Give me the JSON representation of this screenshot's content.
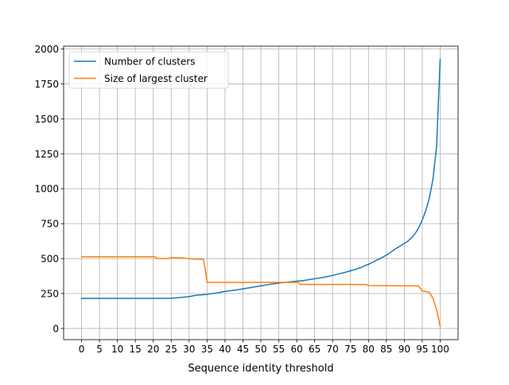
{
  "chart_data": {
    "type": "line",
    "title": "",
    "xlabel": "Sequence identity threshold",
    "ylabel": "",
    "xlim": [
      -5,
      105
    ],
    "ylim": [
      -80,
      2020
    ],
    "xticks": [
      0,
      5,
      10,
      15,
      20,
      25,
      30,
      35,
      40,
      45,
      50,
      55,
      60,
      65,
      70,
      75,
      80,
      85,
      90,
      95,
      100
    ],
    "yticks": [
      0,
      250,
      500,
      750,
      1000,
      1250,
      1500,
      1750,
      2000
    ],
    "grid": true,
    "legend_position": "top-left",
    "series": [
      {
        "name": "Number of clusters",
        "color": "#1f77b4",
        "x": [
          0,
          5,
          10,
          15,
          20,
          24,
          25,
          27,
          30,
          32,
          35,
          38,
          40,
          43,
          46,
          50,
          53,
          56,
          58,
          60,
          62,
          64,
          66,
          68,
          70,
          72,
          74,
          76,
          78,
          79,
          80,
          81,
          82,
          83,
          84,
          85,
          86,
          87,
          88,
          89,
          90,
          91,
          92,
          93,
          94,
          95,
          96,
          97,
          98,
          99,
          100
        ],
        "y": [
          215,
          215,
          215,
          215,
          215,
          216,
          216,
          220,
          228,
          238,
          244,
          256,
          265,
          275,
          288,
          305,
          318,
          328,
          333,
          338,
          343,
          352,
          360,
          368,
          380,
          392,
          405,
          420,
          437,
          450,
          458,
          472,
          485,
          497,
          510,
          525,
          542,
          560,
          577,
          592,
          608,
          625,
          648,
          678,
          720,
          775,
          845,
          935,
          1070,
          1300,
          1925
        ]
      },
      {
        "name": "Size of largest cluster",
        "color": "#ff7f0e",
        "x": [
          0,
          5,
          10,
          15,
          20,
          20.5,
          21,
          24,
          25,
          28,
          30,
          31,
          34,
          34.5,
          35,
          40,
          45,
          50,
          55,
          58,
          59.5,
          60,
          60.5,
          61,
          65,
          70,
          75,
          79,
          79.5,
          80,
          85,
          90,
          94,
          94.5,
          95,
          96,
          97,
          98,
          99,
          100
        ],
        "y": [
          513,
          513,
          513,
          513,
          513,
          513,
          500,
          500,
          507,
          505,
          500,
          497,
          495,
          420,
          330,
          330,
          330,
          330,
          330,
          330,
          330,
          332,
          328,
          315,
          315,
          315,
          315,
          315,
          313,
          307,
          306,
          305,
          305,
          285,
          268,
          265,
          258,
          215,
          135,
          15
        ]
      }
    ]
  }
}
